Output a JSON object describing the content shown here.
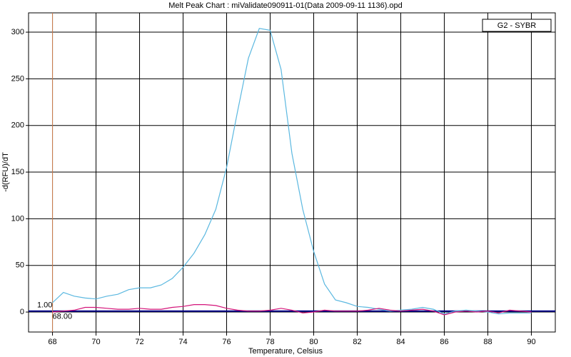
{
  "chart_data": {
    "type": "line",
    "title": "Melt Peak Chart : miValidate090911-01(Data 2009-09-11 1136).opd",
    "x_label": "Temperature, Celsius",
    "y_label": "-d(RFU)/dT",
    "legend": "G2 - SYBR",
    "x": [
      68,
      68.5,
      69,
      69.5,
      70,
      70.5,
      71,
      71.5,
      72,
      72.5,
      73,
      73.5,
      74,
      74.5,
      75,
      75.5,
      76,
      76.5,
      77,
      77.5,
      78,
      78.5,
      79,
      79.5,
      80,
      80.5,
      81,
      81.5,
      82,
      82.5,
      83,
      83.5,
      84,
      84.5,
      85,
      85.5,
      86,
      86.5,
      87,
      87.5,
      88,
      88.5,
      89,
      89.5,
      90
    ],
    "series": [
      {
        "color": "#5bb8e0",
        "values": [
          10,
          21,
          17,
          15,
          14,
          17,
          19,
          24,
          26,
          26,
          29,
          36,
          48,
          63,
          83,
          110,
          155,
          215,
          272,
          304,
          302,
          260,
          170,
          110,
          65,
          30,
          13,
          10,
          6,
          5,
          3,
          1,
          2,
          3,
          5,
          3,
          -2,
          1,
          2,
          1,
          0,
          -2,
          -1,
          -1,
          -1
        ]
      },
      {
        "color": "#d4147a",
        "values": [
          0,
          1,
          2,
          5,
          5,
          4,
          3,
          3,
          4,
          3,
          3,
          5,
          6,
          8,
          8,
          7,
          4,
          2,
          1,
          1,
          2,
          4,
          2,
          -1,
          0,
          2,
          1,
          1,
          1,
          2,
          4,
          2,
          1,
          2,
          3,
          1,
          -3,
          0,
          1,
          0,
          1,
          -1,
          2,
          1,
          0
        ]
      }
    ],
    "threshold": {
      "value": 1,
      "label": "1.00",
      "color": "#00008b"
    },
    "marker": {
      "value": 68,
      "label": "68.00",
      "color": "#d08050"
    },
    "xlim": [
      66.9,
      91.1
    ],
    "ylim": [
      -21.4,
      320.7
    ],
    "xticks": [
      68,
      70,
      72,
      74,
      76,
      78,
      80,
      82,
      84,
      86,
      88,
      90
    ],
    "yticks": [
      0,
      50,
      100,
      150,
      200,
      250,
      300
    ],
    "grid": true
  }
}
